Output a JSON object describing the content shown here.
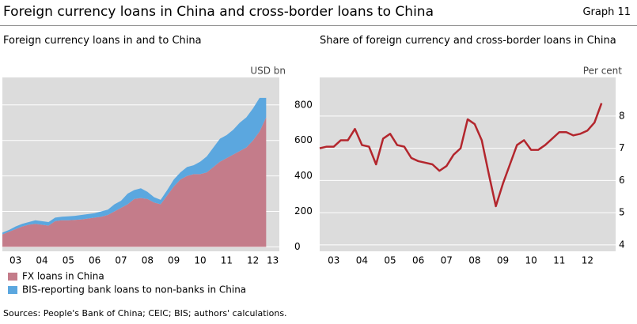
{
  "title": "Foreign currency loans in China and cross-border loans to China",
  "graph_label": "Graph 11",
  "sources": "Sources: People's Bank of China; CEIC; BIS; authors' calculations.",
  "chart_data": [
    {
      "type": "area",
      "stacked": true,
      "title": "Foreign currency loans in and to China",
      "unit": "USD bn",
      "x": [
        2003,
        2003.25,
        2003.5,
        2003.75,
        2004,
        2004.25,
        2004.5,
        2004.75,
        2005,
        2005.25,
        2005.5,
        2005.75,
        2006,
        2006.25,
        2006.5,
        2006.75,
        2007,
        2007.25,
        2007.5,
        2007.75,
        2008,
        2008.25,
        2008.5,
        2008.75,
        2009,
        2009.25,
        2009.5,
        2009.75,
        2010,
        2010.25,
        2010.5,
        2010.75,
        2011,
        2011.25,
        2011.5,
        2011.75,
        2012,
        2012.25,
        2012.5,
        2012.75,
        2013
      ],
      "series": [
        {
          "name": "FX loans in China",
          "color": "#c47c8a",
          "values": [
            70,
            85,
            100,
            115,
            125,
            130,
            125,
            120,
            145,
            150,
            150,
            152,
            155,
            160,
            165,
            170,
            180,
            200,
            220,
            240,
            270,
            275,
            270,
            250,
            240,
            290,
            340,
            380,
            400,
            410,
            410,
            420,
            450,
            480,
            500,
            520,
            540,
            560,
            600,
            650,
            730
          ]
        },
        {
          "name": "BIS-reporting bank loans to non-banks in China",
          "color": "#5ba7df",
          "values": [
            10,
            10,
            15,
            15,
            15,
            20,
            20,
            20,
            20,
            20,
            22,
            23,
            25,
            25,
            25,
            30,
            30,
            40,
            40,
            60,
            50,
            55,
            40,
            30,
            25,
            30,
            40,
            40,
            50,
            50,
            70,
            90,
            110,
            130,
            130,
            140,
            160,
            170,
            180,
            190,
            110
          ]
        }
      ],
      "xlim": [
        2003,
        2013.5
      ],
      "xticks": [
        {
          "value": 2003.5,
          "label": "03"
        },
        {
          "value": 2004.5,
          "label": "04"
        },
        {
          "value": 2005.5,
          "label": "05"
        },
        {
          "value": 2006.5,
          "label": "06"
        },
        {
          "value": 2007.5,
          "label": "07"
        },
        {
          "value": 2008.5,
          "label": "08"
        },
        {
          "value": 2009.5,
          "label": "09"
        },
        {
          "value": 2010.5,
          "label": "10"
        },
        {
          "value": 2011.5,
          "label": "11"
        },
        {
          "value": 2012.5,
          "label": "12"
        },
        {
          "value": 2013.25,
          "label": "13"
        }
      ],
      "ylim": [
        -25,
        955
      ],
      "yticks": [
        0,
        200,
        400,
        600,
        800
      ],
      "grid": true
    },
    {
      "type": "line",
      "title": "Share of foreign currency and cross-border loans in China",
      "unit": "Per cent",
      "x": [
        2003,
        2003.25,
        2003.5,
        2003.75,
        2004,
        2004.25,
        2004.5,
        2004.75,
        2005,
        2005.25,
        2005.5,
        2005.75,
        2006,
        2006.25,
        2006.5,
        2006.75,
        2007,
        2007.25,
        2007.5,
        2007.75,
        2008,
        2008.25,
        2008.5,
        2008.75,
        2009,
        2009.25,
        2009.5,
        2009.75,
        2010,
        2010.25,
        2010.5,
        2010.75,
        2011,
        2011.25,
        2011.5,
        2011.75,
        2012,
        2012.25,
        2012.5,
        2012.75,
        2013
      ],
      "series": [
        {
          "color": "#b3262d",
          "values": [
            7.0,
            7.05,
            7.05,
            7.25,
            7.25,
            7.6,
            7.1,
            7.05,
            6.5,
            7.3,
            7.45,
            7.1,
            7.05,
            6.7,
            6.6,
            6.55,
            6.5,
            6.3,
            6.45,
            6.8,
            7.0,
            7.9,
            7.75,
            7.25,
            6.2,
            5.2,
            5.9,
            6.5,
            7.1,
            7.25,
            6.95,
            6.95,
            7.1,
            7.3,
            7.5,
            7.5,
            7.4,
            7.45,
            7.55,
            7.8,
            8.4
          ]
        }
      ],
      "xlim": [
        2003,
        2013.5
      ],
      "xticks": [
        {
          "value": 2003.5,
          "label": "03"
        },
        {
          "value": 2004.5,
          "label": "04"
        },
        {
          "value": 2005.5,
          "label": "05"
        },
        {
          "value": 2006.5,
          "label": "06"
        },
        {
          "value": 2007.5,
          "label": "07"
        },
        {
          "value": 2008.5,
          "label": "08"
        },
        {
          "value": 2009.5,
          "label": "09"
        },
        {
          "value": 2010.5,
          "label": "10"
        },
        {
          "value": 2011.5,
          "label": "11"
        },
        {
          "value": 2012.5,
          "label": "12"
        }
      ],
      "ylim": [
        3.8,
        9.2
      ],
      "yticks": [
        4,
        5,
        6,
        7,
        8
      ],
      "grid": true
    }
  ]
}
